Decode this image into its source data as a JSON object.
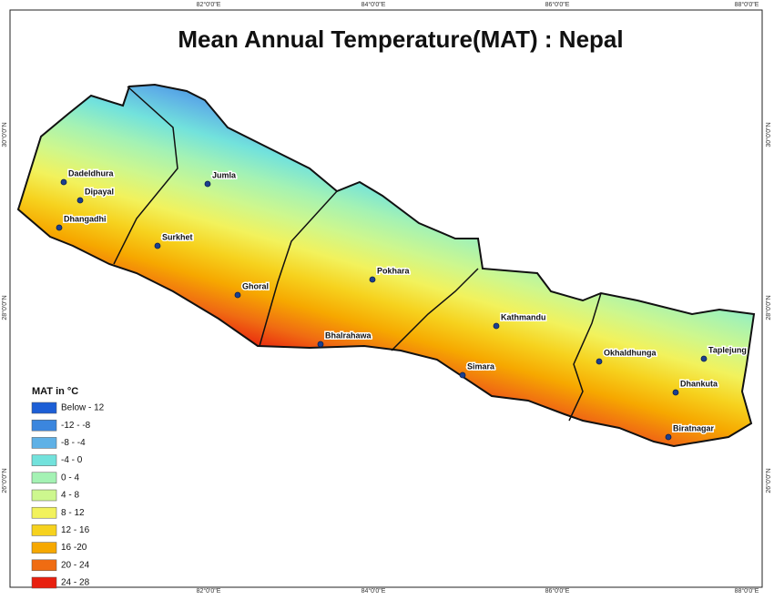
{
  "title": "Mean Annual Temperature(MAT) : Nepal",
  "legend": {
    "title": "MAT in °C",
    "entries": [
      {
        "label": "Below - 12",
        "color": "#1d5fd6"
      },
      {
        "label": "-12 - -8",
        "color": "#3b86de"
      },
      {
        "label": "-8 - -4",
        "color": "#5fb1e6"
      },
      {
        "label": "-4 - 0",
        "color": "#72e2dc"
      },
      {
        "label": "0 - 4",
        "color": "#a4f2b4"
      },
      {
        "label": "4 - 8",
        "color": "#cdf78e"
      },
      {
        "label": "8 - 12",
        "color": "#f2f25c"
      },
      {
        "label": "12 - 16",
        "color": "#f6d21e"
      },
      {
        "label": "16 -20",
        "color": "#f6a800"
      },
      {
        "label": "20 - 24",
        "color": "#f06c12"
      },
      {
        "label": "24 - 28",
        "color": "#e8200f"
      }
    ]
  },
  "cities": [
    "Dadeldhura",
    "Dipayal",
    "Dhangadhi",
    "Jumla",
    "Surkhet",
    "Ghoral",
    "Bhalrahawa",
    "Pokhara",
    "Kathmandu",
    "Simara",
    "Okhaldhunga",
    "Taplejung",
    "Dhankuta",
    "Biratnagar"
  ],
  "graticule": {
    "longitudes": [
      "82°0'0\"E",
      "84°0'0\"E",
      "86°0'0\"E",
      "88°0'0\"E"
    ],
    "latitudes": [
      "30°0'0\"N",
      "28°0'0\"N",
      "26°0'0\"N"
    ]
  }
}
